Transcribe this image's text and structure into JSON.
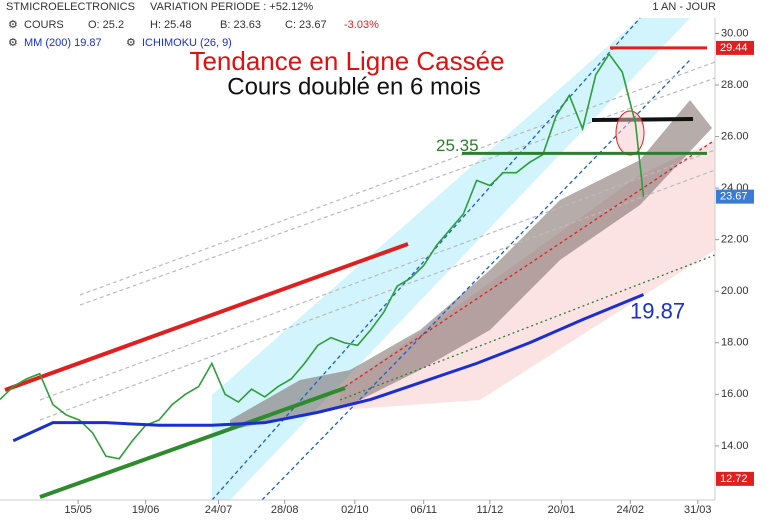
{
  "header": {
    "name": "STMICROELECTRONICS",
    "variation": "VARIATION PERIODE : +52.12%",
    "period": "1 AN - JOUR",
    "cours": "COURS",
    "open": "O: 25.2",
    "high": "H: 25.48",
    "low": "B: 23.63",
    "close": "C: 23.67",
    "change": "-3.03%",
    "mm": "MM (200) 19.87",
    "ichimoku": "ICHIMOKU (26, 9)"
  },
  "chart_data": {
    "type": "line",
    "annotations": [
      "Tendance en Ligne Cassée",
      "Cours doublé en 6 mois"
    ],
    "levels": [
      {
        "label": "29.44",
        "value": 29.44,
        "color": "#e02020"
      },
      {
        "label": "25.35",
        "value": 25.35,
        "color": "#2e7d32"
      }
    ],
    "mm_label": {
      "label": "19.87",
      "value": 19.87
    },
    "price_tags": [
      {
        "label": "29.44",
        "value": 29.44,
        "color": "#e02020"
      },
      {
        "label": "23.67",
        "value": 23.67,
        "color": "#3a7bd5"
      },
      {
        "label": "12.72",
        "value": 12.72,
        "color": "#e02020"
      }
    ],
    "xlim": [
      0,
      54
    ],
    "ylim": [
      11.9,
      30.6
    ],
    "xticks": [
      {
        "value": 5.9,
        "label": "15/05"
      },
      {
        "value": 11,
        "label": "19/06"
      },
      {
        "value": 16.5,
        "label": "24/07"
      },
      {
        "value": 21.5,
        "label": "28/08"
      },
      {
        "value": 26.8,
        "label": "02/10"
      },
      {
        "value": 32,
        "label": "06/11"
      },
      {
        "value": 37,
        "label": "11/12"
      },
      {
        "value": 42.4,
        "label": "20/01"
      },
      {
        "value": 47.6,
        "label": "24/02"
      },
      {
        "value": 52.7,
        "label": "31/03"
      }
    ],
    "yticks": [
      {
        "value": 14,
        "label": "14.00"
      },
      {
        "value": 16,
        "label": "16.00"
      },
      {
        "value": 18,
        "label": "18.00"
      },
      {
        "value": 20,
        "label": "20.00"
      },
      {
        "value": 22,
        "label": "22.00"
      },
      {
        "value": 24,
        "label": "24.00"
      },
      {
        "value": 26,
        "label": "26.00"
      },
      {
        "value": 28,
        "label": "28.00"
      },
      {
        "value": 30,
        "label": "30.00"
      }
    ],
    "series": [
      {
        "name": "COURS",
        "color": "#2e9e3a",
        "x": [
          0,
          1,
          2,
          3,
          4,
          5,
          6,
          7,
          8,
          9,
          10,
          11,
          12,
          13,
          14,
          15,
          16,
          17,
          18,
          19,
          20,
          21,
          22,
          23,
          24,
          25,
          26,
          27,
          28,
          29,
          30,
          31,
          32,
          33,
          34,
          35,
          36,
          37,
          38,
          39,
          40,
          41,
          42,
          43,
          44,
          45,
          46,
          47,
          48,
          48.6
        ],
        "values": [
          15.8,
          16.3,
          16.6,
          16.8,
          15.6,
          15.2,
          15.0,
          14.5,
          13.6,
          13.5,
          14.2,
          14.8,
          15.0,
          15.6,
          16.0,
          16.3,
          17.2,
          16.0,
          15.7,
          16.2,
          15.9,
          16.3,
          16.6,
          17.2,
          17.9,
          18.2,
          18.0,
          17.9,
          18.5,
          19.2,
          20.2,
          20.5,
          21.0,
          21.8,
          22.4,
          23.0,
          24.3,
          24.1,
          24.6,
          24.6,
          25.0,
          25.3,
          26.8,
          27.6,
          26.3,
          28.4,
          29.2,
          28.5,
          26.5,
          23.67
        ]
      },
      {
        "name": "MM (200)",
        "color": "#1a2fd0",
        "x": [
          1,
          4,
          8,
          12,
          16,
          20,
          24,
          28,
          32,
          36,
          40,
          44,
          48.6
        ],
        "values": [
          14.2,
          14.9,
          14.9,
          14.8,
          14.8,
          14.9,
          15.3,
          15.8,
          16.5,
          17.2,
          18.0,
          18.9,
          19.87
        ]
      }
    ]
  }
}
